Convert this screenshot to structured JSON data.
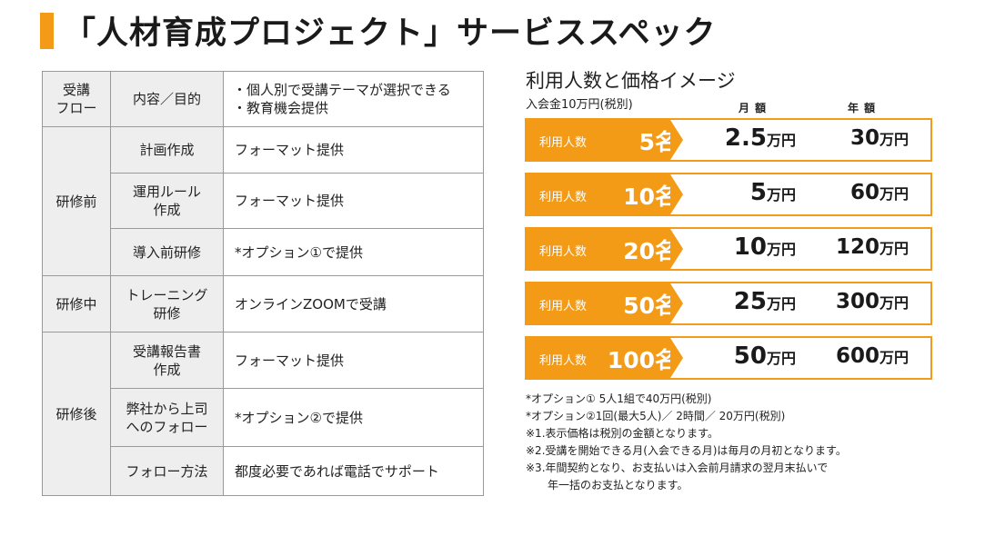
{
  "title": "「人材育成プロジェクト」サービススペック",
  "spec_table": {
    "header": {
      "flow": "受講\nフロー",
      "content": "内容／目的",
      "purpose": "・個人別で受講テーマが選択できる\n・教育機会提供"
    },
    "groups": {
      "pre": "研修前",
      "mid": "研修中",
      "post": "研修後"
    },
    "rows": [
      {
        "item": "計画作成",
        "detail": "フォーマット提供"
      },
      {
        "item": "運用ルール\n作成",
        "detail": "フォーマット提供"
      },
      {
        "item": "導入前研修",
        "detail": "*オプション①で提供"
      },
      {
        "item": "トレーニング\n研修",
        "detail": "オンラインZOOMで受講"
      },
      {
        "item": "受講報告書\n作成",
        "detail": "フォーマット提供"
      },
      {
        "item": "弊社から上司\nへのフォロー",
        "detail": "*オプション②で提供"
      },
      {
        "item": "フォロー方法",
        "detail": "都度必要であれば電話でサポート"
      }
    ]
  },
  "pricing": {
    "title": "利用人数と価格イメージ",
    "fee_note": "入会金10万円(税別)",
    "col_monthly": "月額",
    "col_annual": "年額",
    "label": "利用人数",
    "unit_people": "名",
    "unit_yen": "万円",
    "rows": [
      {
        "count": "5",
        "monthly": "2.5",
        "annual": "30"
      },
      {
        "count": "10",
        "monthly": "5",
        "annual": "60"
      },
      {
        "count": "20",
        "monthly": "10",
        "annual": "120"
      },
      {
        "count": "50",
        "monthly": "25",
        "annual": "300"
      },
      {
        "count": "100",
        "monthly": "50",
        "annual": "600"
      }
    ],
    "accent_color": "#f39a17"
  },
  "notes": [
    "*オプション① 5人1組で40万円(税別)",
    "*オプション②1回(最大5人)／ 2時間／ 20万円(税別)",
    "※1.表示価格は税別の金額となります。",
    "※2.受講を開始できる月(入会できる月)は毎月の月初となります。",
    "※3.年間契約となり、お支払いは入会前月請求の翌月末払いで",
    "年一括のお支払となります。"
  ]
}
